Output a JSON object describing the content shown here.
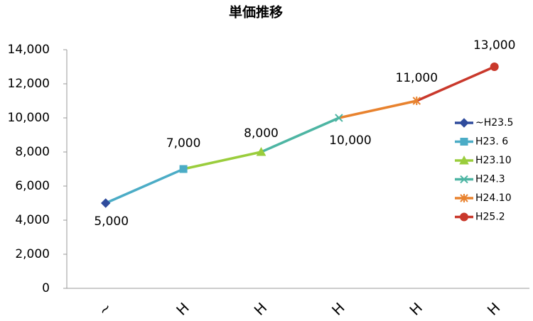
{
  "chart_data": {
    "type": "line",
    "title": "単価推移",
    "categories": [
      "~",
      "H",
      "H",
      "H",
      "H",
      "H"
    ],
    "series": [
      {
        "name": "~H23.5",
        "color": "#2f4b9c",
        "marker": "diamond",
        "values": [
          5000,
          null,
          null,
          null,
          null,
          null
        ],
        "value_labels": [
          "5,000",
          null,
          null,
          null,
          null,
          null
        ]
      },
      {
        "name": "H23. 6",
        "color": "#4bacc6",
        "marker": "square",
        "values": [
          null,
          7000,
          null,
          null,
          null,
          null
        ],
        "value_labels": [
          null,
          "7,000",
          null,
          null,
          null,
          null
        ]
      },
      {
        "name": "H23.10",
        "color": "#9acd3c",
        "marker": "triangle",
        "values": [
          null,
          null,
          8000,
          null,
          null,
          null
        ],
        "value_labels": [
          null,
          null,
          "8,000",
          null,
          null,
          null
        ]
      },
      {
        "name": "H24.3",
        "color": "#4db5a3",
        "marker": "x",
        "values": [
          null,
          null,
          null,
          10000,
          null,
          null
        ],
        "value_labels": [
          null,
          null,
          null,
          "10,000",
          null,
          null
        ]
      },
      {
        "name": "H24.10",
        "color": "#e8822e",
        "marker": "star",
        "values": [
          null,
          null,
          null,
          null,
          11000,
          null
        ],
        "value_labels": [
          null,
          null,
          null,
          null,
          "11,000",
          null
        ]
      },
      {
        "name": "H25.2",
        "color": "#c9382b",
        "marker": "circle",
        "values": [
          null,
          null,
          null,
          null,
          null,
          13000
        ],
        "value_labels": [
          null,
          null,
          null,
          null,
          null,
          "13,000"
        ]
      }
    ],
    "ylim": [
      0,
      14000
    ],
    "yticks": [
      0,
      {
        "value": 2000,
        "label": "2,000"
      },
      {
        "value": 4000,
        "label": "4,000"
      },
      {
        "value": 6000,
        "label": "6,000"
      },
      {
        "value": 8000,
        "label": "8,000"
      },
      {
        "value": 10000,
        "label": "10,000"
      },
      {
        "value": 12000,
        "label": "12,000"
      },
      {
        "value": 14000,
        "label": "14,000"
      }
    ],
    "grid": false,
    "legend": "right"
  }
}
